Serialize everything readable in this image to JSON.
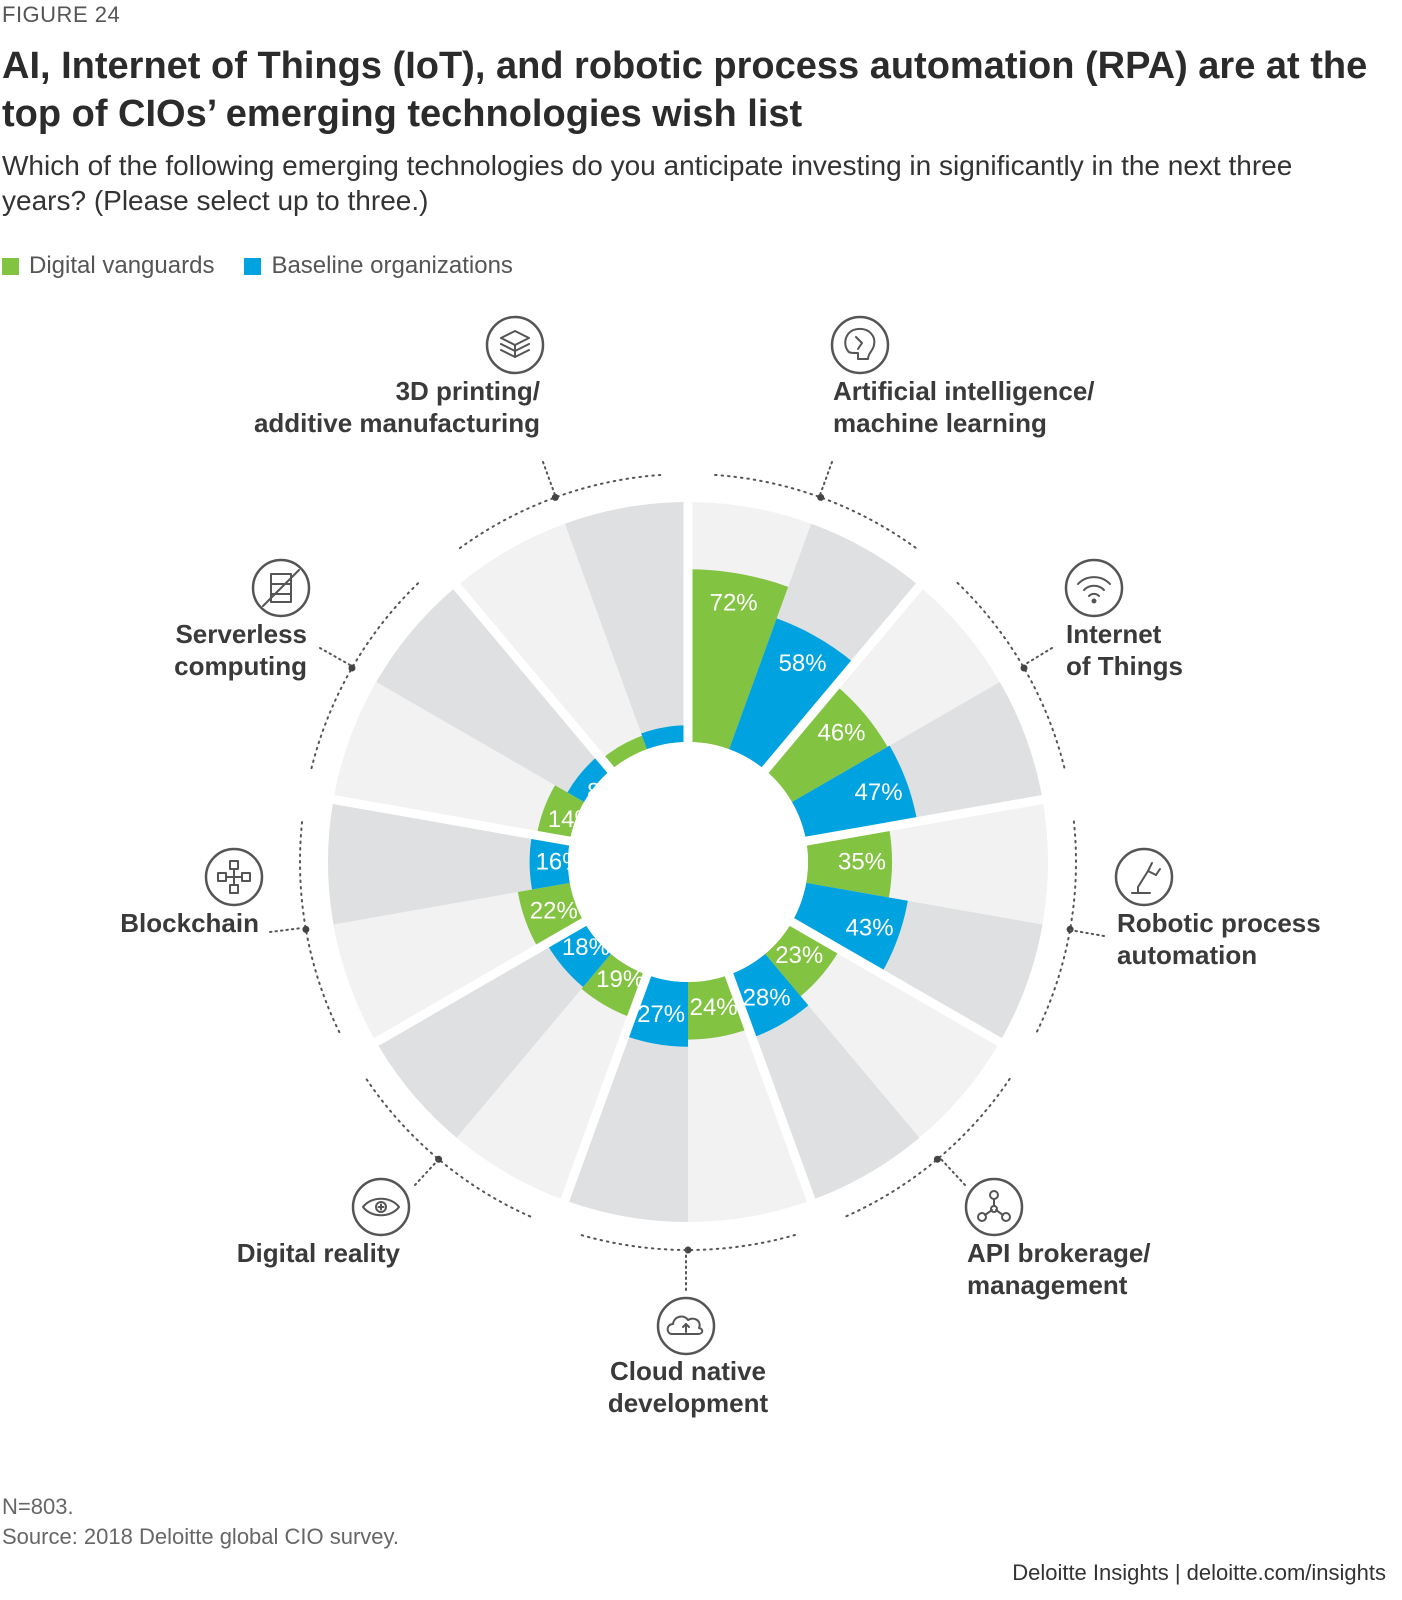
{
  "figure_label": "FIGURE 24",
  "legend": [
    {
      "name": "Digital vanguards",
      "color": "#82c341"
    },
    {
      "name": "Baseline organizations",
      "color": "#00a3e0"
    }
  ],
  "note": "N=803.",
  "source": "Source: 2018 Deloitte global CIO survey.",
  "footer": "Deloitte Insights | deloitte.com/insights",
  "chart_data": {
    "type": "polar-bar",
    "title": "AI, Internet of Things (IoT), and robotic process automation (RPA) are at the top of CIOs’ emerging technologies wish list",
    "subtitle": "Which of the following emerging technologies do you anticipate investing in significantly in the next three years? (Please select up to three.)",
    "unit": "%",
    "ylim": [
      0,
      100
    ],
    "legend_position": "top-left",
    "categories": [
      {
        "lines": [
          "Artificial intelligence/",
          "machine learning"
        ],
        "icon": "brain-icon"
      },
      {
        "lines": [
          "Internet",
          "of Things"
        ],
        "icon": "wifi-icon"
      },
      {
        "lines": [
          "Robotic process",
          "automation"
        ],
        "icon": "robot-arm-icon"
      },
      {
        "lines": [
          "API brokerage/",
          "management"
        ],
        "icon": "network-nodes-icon"
      },
      {
        "lines": [
          "Cloud native",
          "development"
        ],
        "icon": "cloud-icon"
      },
      {
        "lines": [
          "Digital reality"
        ],
        "icon": "eye-icon"
      },
      {
        "lines": [
          "Blockchain"
        ],
        "icon": "blockchain-icon"
      },
      {
        "lines": [
          "Serverless",
          "computing"
        ],
        "icon": "server-slash-icon"
      },
      {
        "lines": [
          "3D printing/",
          "additive manufacturing"
        ],
        "icon": "cube-layers-icon"
      }
    ],
    "series": [
      {
        "name": "Digital vanguards",
        "values": [
          72,
          46,
          35,
          23,
          24,
          19,
          22,
          14,
          6
        ],
        "labels": [
          "72%",
          "46%",
          "35%",
          "23%",
          "24%",
          "19%",
          "22%",
          "14%",
          "6%"
        ]
      },
      {
        "name": "Baseline organizations",
        "values": [
          58,
          47,
          43,
          28,
          27,
          18,
          16,
          8,
          7
        ],
        "labels": [
          "58%",
          "47%",
          "43%",
          "28%",
          "27%",
          "18%",
          "16%",
          "8%",
          "7%"
        ]
      }
    ]
  }
}
